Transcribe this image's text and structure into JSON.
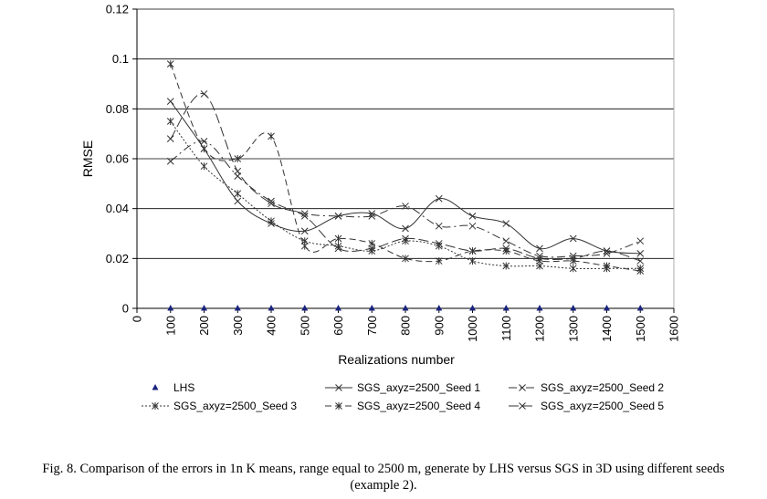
{
  "chart_data": {
    "type": "line",
    "xlabel": "Realizations number",
    "ylabel": "RMSE",
    "xlim": [
      0,
      1600
    ],
    "ylim": [
      0,
      0.12
    ],
    "xticks": [
      "0",
      "100",
      "200",
      "300",
      "400",
      "500",
      "600",
      "700",
      "800",
      "900",
      "1000",
      "1100",
      "1200",
      "1300",
      "1400",
      "1500",
      "1600"
    ],
    "yticks": [
      "0",
      "0.02",
      "0.04",
      "0.06",
      "0.08",
      "0.1",
      "0.12"
    ],
    "grid": "horizontal",
    "legend_position": "bottom",
    "x": [
      100,
      200,
      300,
      400,
      500,
      600,
      700,
      800,
      900,
      1000,
      1100,
      1200,
      1300,
      1400,
      1500
    ],
    "series": [
      {
        "name": "LHS",
        "color": "#1a237e",
        "values": [
          0,
          0,
          0,
          0,
          0,
          0,
          0,
          0,
          0,
          0,
          0,
          0,
          0,
          0,
          0
        ]
      },
      {
        "name": "SGS_axyz=2500_Seed 1",
        "color": "#333333",
        "values": [
          0.083,
          0.064,
          0.043,
          0.034,
          0.031,
          0.037,
          0.038,
          0.032,
          0.044,
          0.037,
          0.034,
          0.024,
          0.028,
          0.023,
          0.022
        ]
      },
      {
        "name": "SGS_axyz=2500_Seed 2",
        "color": "#333333",
        "values": [
          0.059,
          0.067,
          0.053,
          0.043,
          0.038,
          0.037,
          0.037,
          0.041,
          0.033,
          0.033,
          0.027,
          0.021,
          0.021,
          0.022,
          0.027
        ]
      },
      {
        "name": "SGS_axyz=2500_Seed 3",
        "color": "#333333",
        "values": [
          0.075,
          0.057,
          0.046,
          0.035,
          0.027,
          0.025,
          0.023,
          0.027,
          0.025,
          0.019,
          0.017,
          0.017,
          0.016,
          0.016,
          0.016
        ]
      },
      {
        "name": "SGS_axyz=2500_Seed 4",
        "color": "#333333",
        "values": [
          0.098,
          0.064,
          0.06,
          0.069,
          0.025,
          0.028,
          0.026,
          0.02,
          0.019,
          0.023,
          0.023,
          0.019,
          0.019,
          0.017,
          0.015
        ]
      },
      {
        "name": "SGS_axyz=2500_Seed 5",
        "color": "#333333",
        "values": [
          0.068,
          0.086,
          0.055,
          0.042,
          0.037,
          0.024,
          0.024,
          0.028,
          0.026,
          0.023,
          0.024,
          0.02,
          0.02,
          0.023,
          0.019
        ]
      }
    ]
  },
  "caption": {
    "line1": "Fig. 8. Comparison of the errors in 1n K means, range equal to 2500 m, generate by LHS versus SGS in 3D using different seeds",
    "line2": "(example 2)."
  }
}
